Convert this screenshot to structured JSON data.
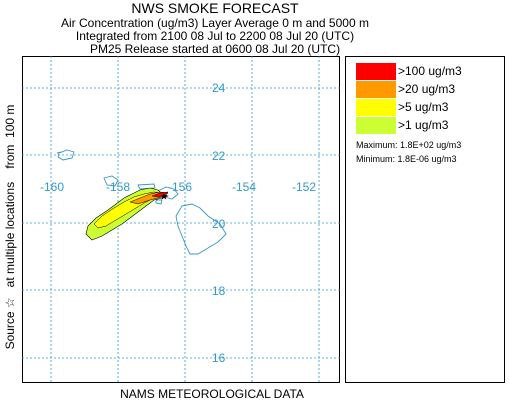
{
  "header": {
    "title": "NWS SMOKE FORECAST",
    "line1": "Air Concentration (ug/m3) Layer Average    0 m and  5000 m",
    "line2": "Integrated from 2100 08 Jul to 2200 08 Jul 20 (UTC)",
    "line3": "PM25 Release started at 0600 08 Jul 20 (UTC)"
  },
  "map": {
    "lat_labels": [
      "24",
      "22",
      "20",
      "18",
      "16"
    ],
    "lon_labels": [
      "-160",
      "-158",
      "-156",
      "-154",
      "-152"
    ],
    "grid_color": "#3399cc",
    "label_color": "#3399cc",
    "coast_color": "#3399cc",
    "source_marker": "star"
  },
  "legend": {
    "items": [
      {
        "label": ">100 ug/m3",
        "color": "#ff0000"
      },
      {
        "label": ">20 ug/m3",
        "color": "#ff9900"
      },
      {
        "label": ">5 ug/m3",
        "color": "#ffff00"
      },
      {
        "label": ">1 ug/m3",
        "color": "#ccff33"
      }
    ],
    "maximum": "Maximum: 1.8E+02 ug/m3",
    "minimum": "Minimum: 1.8E-06 ug/m3"
  },
  "y_axis_label": "Source ☆   at multiple locations    from  100 m",
  "x_axis_label": "NAMS METEOROLOGICAL DATA"
}
